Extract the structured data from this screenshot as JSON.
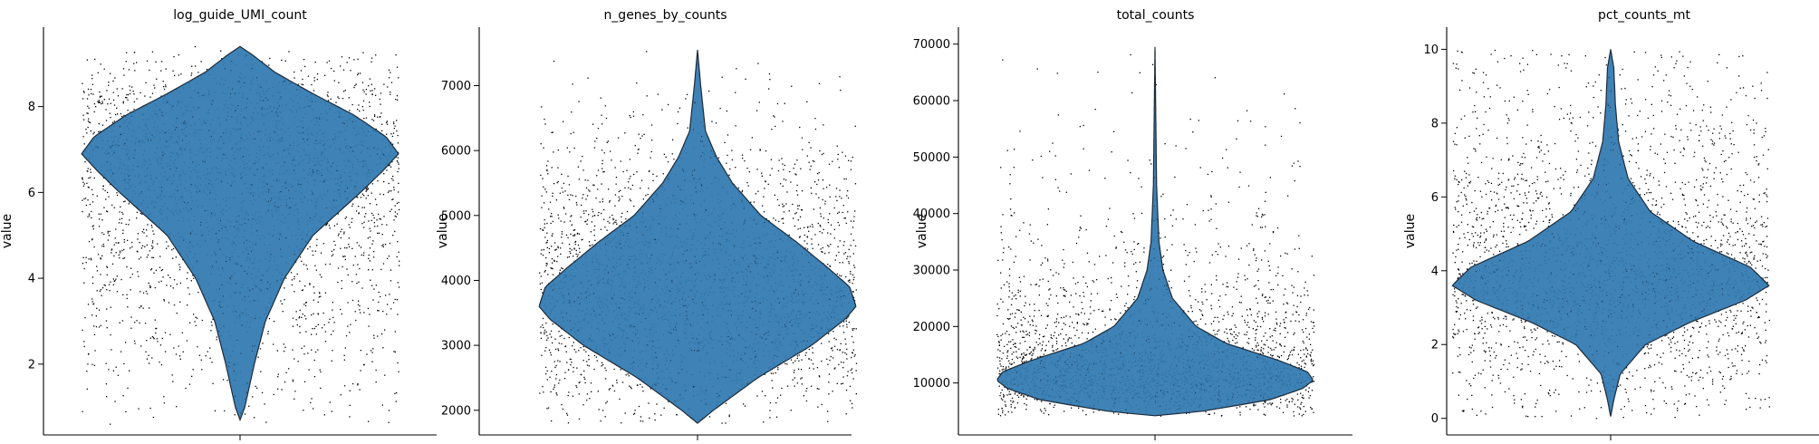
{
  "chart_data": [
    {
      "type": "violin",
      "title": "log_guide_UMI_count",
      "xlabel": "",
      "ylabel": "value",
      "ylim": [
        0.35,
        9.85
      ],
      "yticks": [
        2,
        4,
        6,
        8
      ],
      "data_range": [
        0.7,
        9.4
      ],
      "density_profile": [
        [
          0.7,
          0.0
        ],
        [
          1.0,
          0.03
        ],
        [
          1.5,
          0.06
        ],
        [
          2.0,
          0.09
        ],
        [
          3.0,
          0.16
        ],
        [
          4.0,
          0.28
        ],
        [
          5.0,
          0.46
        ],
        [
          6.0,
          0.76
        ],
        [
          6.5,
          0.9
        ],
        [
          6.9,
          1.0
        ],
        [
          7.3,
          0.92
        ],
        [
          7.8,
          0.72
        ],
        [
          8.3,
          0.46
        ],
        [
          8.8,
          0.22
        ],
        [
          9.2,
          0.08
        ],
        [
          9.4,
          0.0
        ]
      ],
      "points_profile": [
        [
          0.6,
          0.06
        ],
        [
          2.0,
          0.18
        ],
        [
          4.0,
          0.4
        ],
        [
          5.5,
          0.65
        ],
        [
          6.9,
          1.0
        ],
        [
          8.0,
          0.7
        ],
        [
          9.4,
          0.05
        ]
      ],
      "color": "#2f78b0"
    },
    {
      "type": "violin",
      "title": "n_genes_by_counts",
      "xlabel": "",
      "ylabel": "value",
      "ylim": [
        1620,
        7900
      ],
      "yticks": [
        2000,
        3000,
        4000,
        5000,
        6000,
        7000
      ],
      "data_range": [
        1800,
        7550
      ],
      "density_profile": [
        [
          1800,
          0.0
        ],
        [
          2000,
          0.1
        ],
        [
          2500,
          0.38
        ],
        [
          3000,
          0.72
        ],
        [
          3400,
          0.93
        ],
        [
          3600,
          1.0
        ],
        [
          3900,
          0.96
        ],
        [
          4200,
          0.82
        ],
        [
          4600,
          0.62
        ],
        [
          5000,
          0.4
        ],
        [
          5500,
          0.22
        ],
        [
          5900,
          0.12
        ],
        [
          6300,
          0.05
        ],
        [
          7000,
          0.02
        ],
        [
          7550,
          0.0
        ]
      ],
      "points_profile": [
        [
          1800,
          0.1
        ],
        [
          2500,
          0.5
        ],
        [
          3600,
          1.0
        ],
        [
          4500,
          0.75
        ],
        [
          5500,
          0.35
        ],
        [
          6500,
          0.1
        ],
        [
          7550,
          0.01
        ]
      ],
      "color": "#2f78b0"
    },
    {
      "type": "violin",
      "title": "total_counts",
      "xlabel": "",
      "ylabel": "value",
      "ylim": [
        800,
        73000
      ],
      "yticks": [
        10000,
        20000,
        30000,
        40000,
        50000,
        60000,
        70000
      ],
      "data_range": [
        4200,
        69500
      ],
      "density_profile": [
        [
          4200,
          0.0
        ],
        [
          5000,
          0.3
        ],
        [
          7000,
          0.72
        ],
        [
          9000,
          0.93
        ],
        [
          10500,
          1.0
        ],
        [
          12000,
          0.96
        ],
        [
          14000,
          0.78
        ],
        [
          17000,
          0.45
        ],
        [
          20000,
          0.26
        ],
        [
          25000,
          0.11
        ],
        [
          30000,
          0.05
        ],
        [
          35000,
          0.025
        ],
        [
          45000,
          0.01
        ],
        [
          69500,
          0.0
        ]
      ],
      "points_profile": [
        [
          4200,
          0.15
        ],
        [
          10000,
          1.0
        ],
        [
          15000,
          0.65
        ],
        [
          20000,
          0.3
        ],
        [
          30000,
          0.1
        ],
        [
          45000,
          0.02
        ],
        [
          69500,
          0.005
        ]
      ],
      "color": "#2f78b0"
    },
    {
      "type": "violin",
      "title": "pct_counts_mt",
      "xlabel": "",
      "ylabel": "value",
      "ylim": [
        -0.45,
        10.6
      ],
      "yticks": [
        0,
        2,
        4,
        6,
        8,
        10
      ],
      "data_range": [
        0.05,
        10.0
      ],
      "density_profile": [
        [
          0.05,
          0.0
        ],
        [
          0.5,
          0.02
        ],
        [
          1.2,
          0.06
        ],
        [
          2.0,
          0.22
        ],
        [
          2.6,
          0.5
        ],
        [
          3.2,
          0.85
        ],
        [
          3.6,
          1.0
        ],
        [
          4.1,
          0.88
        ],
        [
          4.8,
          0.52
        ],
        [
          5.6,
          0.25
        ],
        [
          6.5,
          0.11
        ],
        [
          7.5,
          0.05
        ],
        [
          8.5,
          0.03
        ],
        [
          9.5,
          0.02
        ],
        [
          10.0,
          0.0
        ]
      ],
      "points_profile": [
        [
          0.0,
          0.1
        ],
        [
          2.0,
          0.45
        ],
        [
          3.6,
          1.0
        ],
        [
          5.0,
          0.6
        ],
        [
          7.0,
          0.25
        ],
        [
          10.0,
          0.1
        ]
      ],
      "color": "#2f78b0"
    }
  ]
}
